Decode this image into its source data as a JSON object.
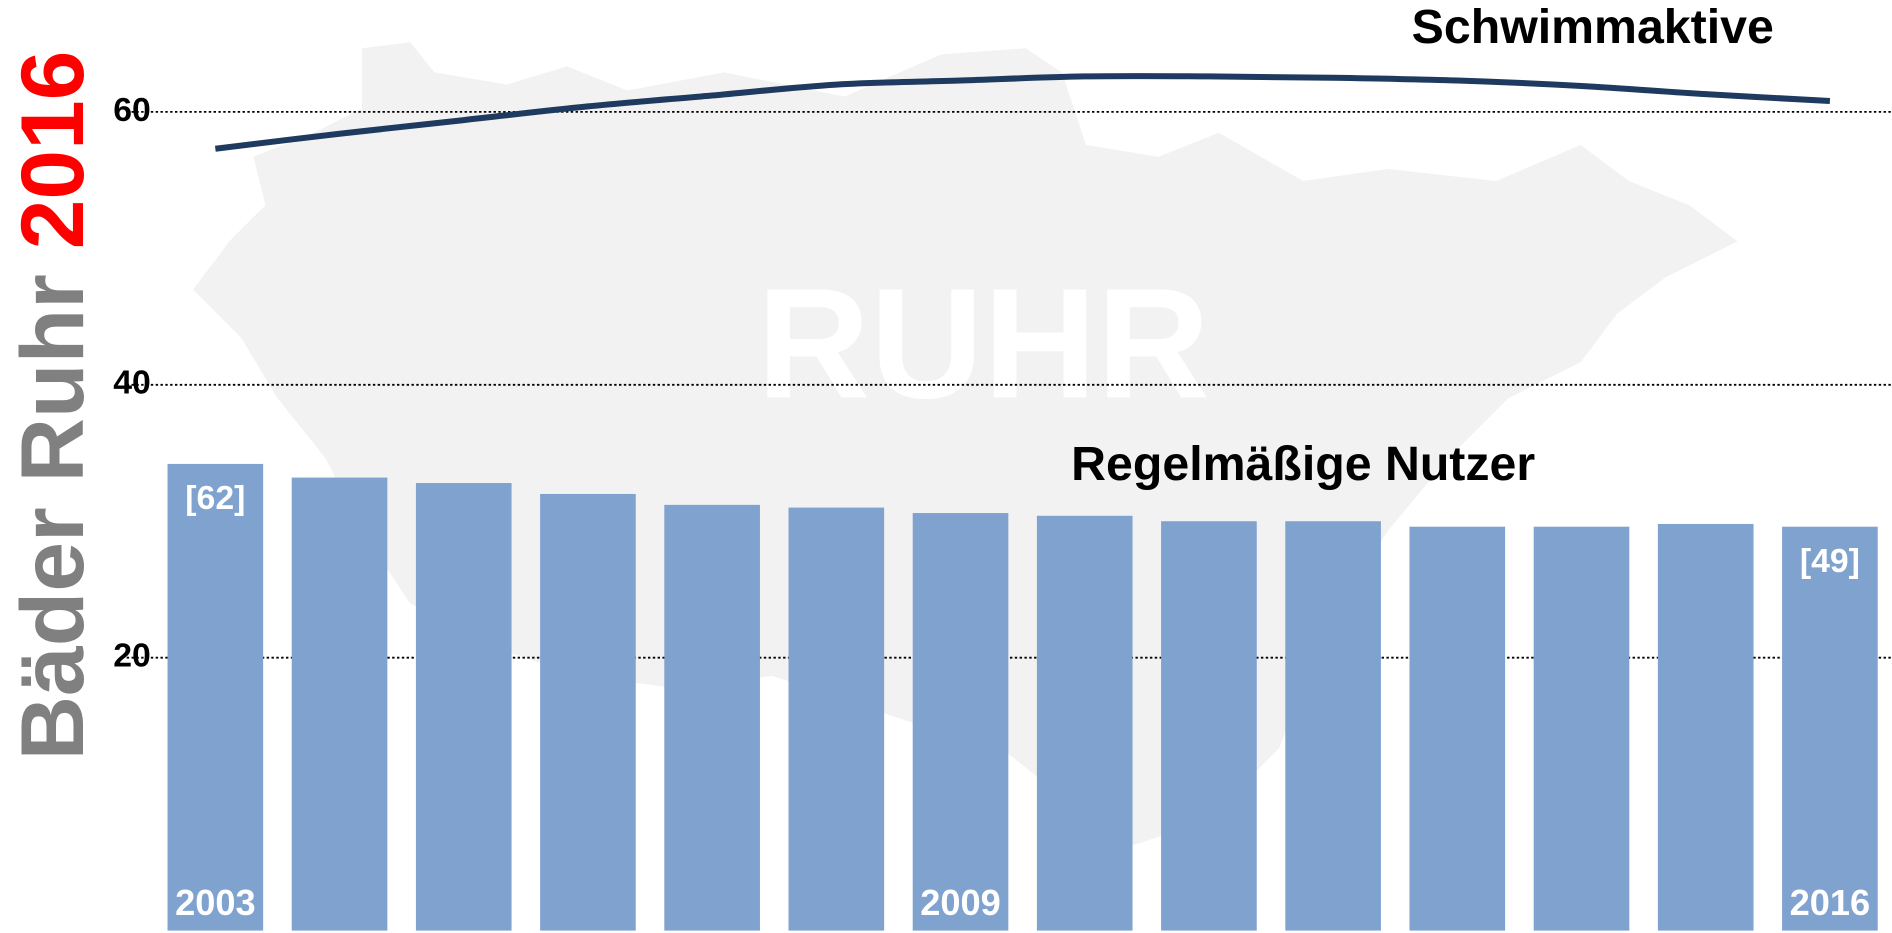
{
  "chart_data": {
    "type": "bar",
    "title_parts": [
      "Bäder Ruhr",
      "2016"
    ],
    "watermark": "RUHR",
    "categories": [
      "2003",
      null,
      null,
      null,
      null,
      null,
      "2009",
      null,
      null,
      null,
      null,
      null,
      null,
      "2016"
    ],
    "series": [
      {
        "name": "Regelmäßige Nutzer",
        "type": "bar",
        "color": "#7fa2cf",
        "values": [
          34.2,
          33.2,
          32.8,
          32.0,
          31.2,
          31.0,
          30.6,
          30.4,
          30.0,
          30.0,
          29.6,
          29.6,
          29.8,
          29.6
        ],
        "notes": [
          "[62]",
          null,
          null,
          null,
          null,
          null,
          null,
          null,
          null,
          null,
          null,
          null,
          null,
          "[49]"
        ]
      },
      {
        "name": "Schwimmaktive",
        "type": "line",
        "color": "#1f3a5f",
        "values": [
          57.3,
          58.4,
          59.4,
          60.4,
          61.2,
          62.0,
          62.3,
          62.6,
          62.6,
          62.5,
          62.3,
          61.9,
          61.3,
          60.8
        ]
      }
    ],
    "ylim": [
      0,
      68.2
    ],
    "yticks": [
      20,
      40,
      60
    ],
    "grid": true
  }
}
